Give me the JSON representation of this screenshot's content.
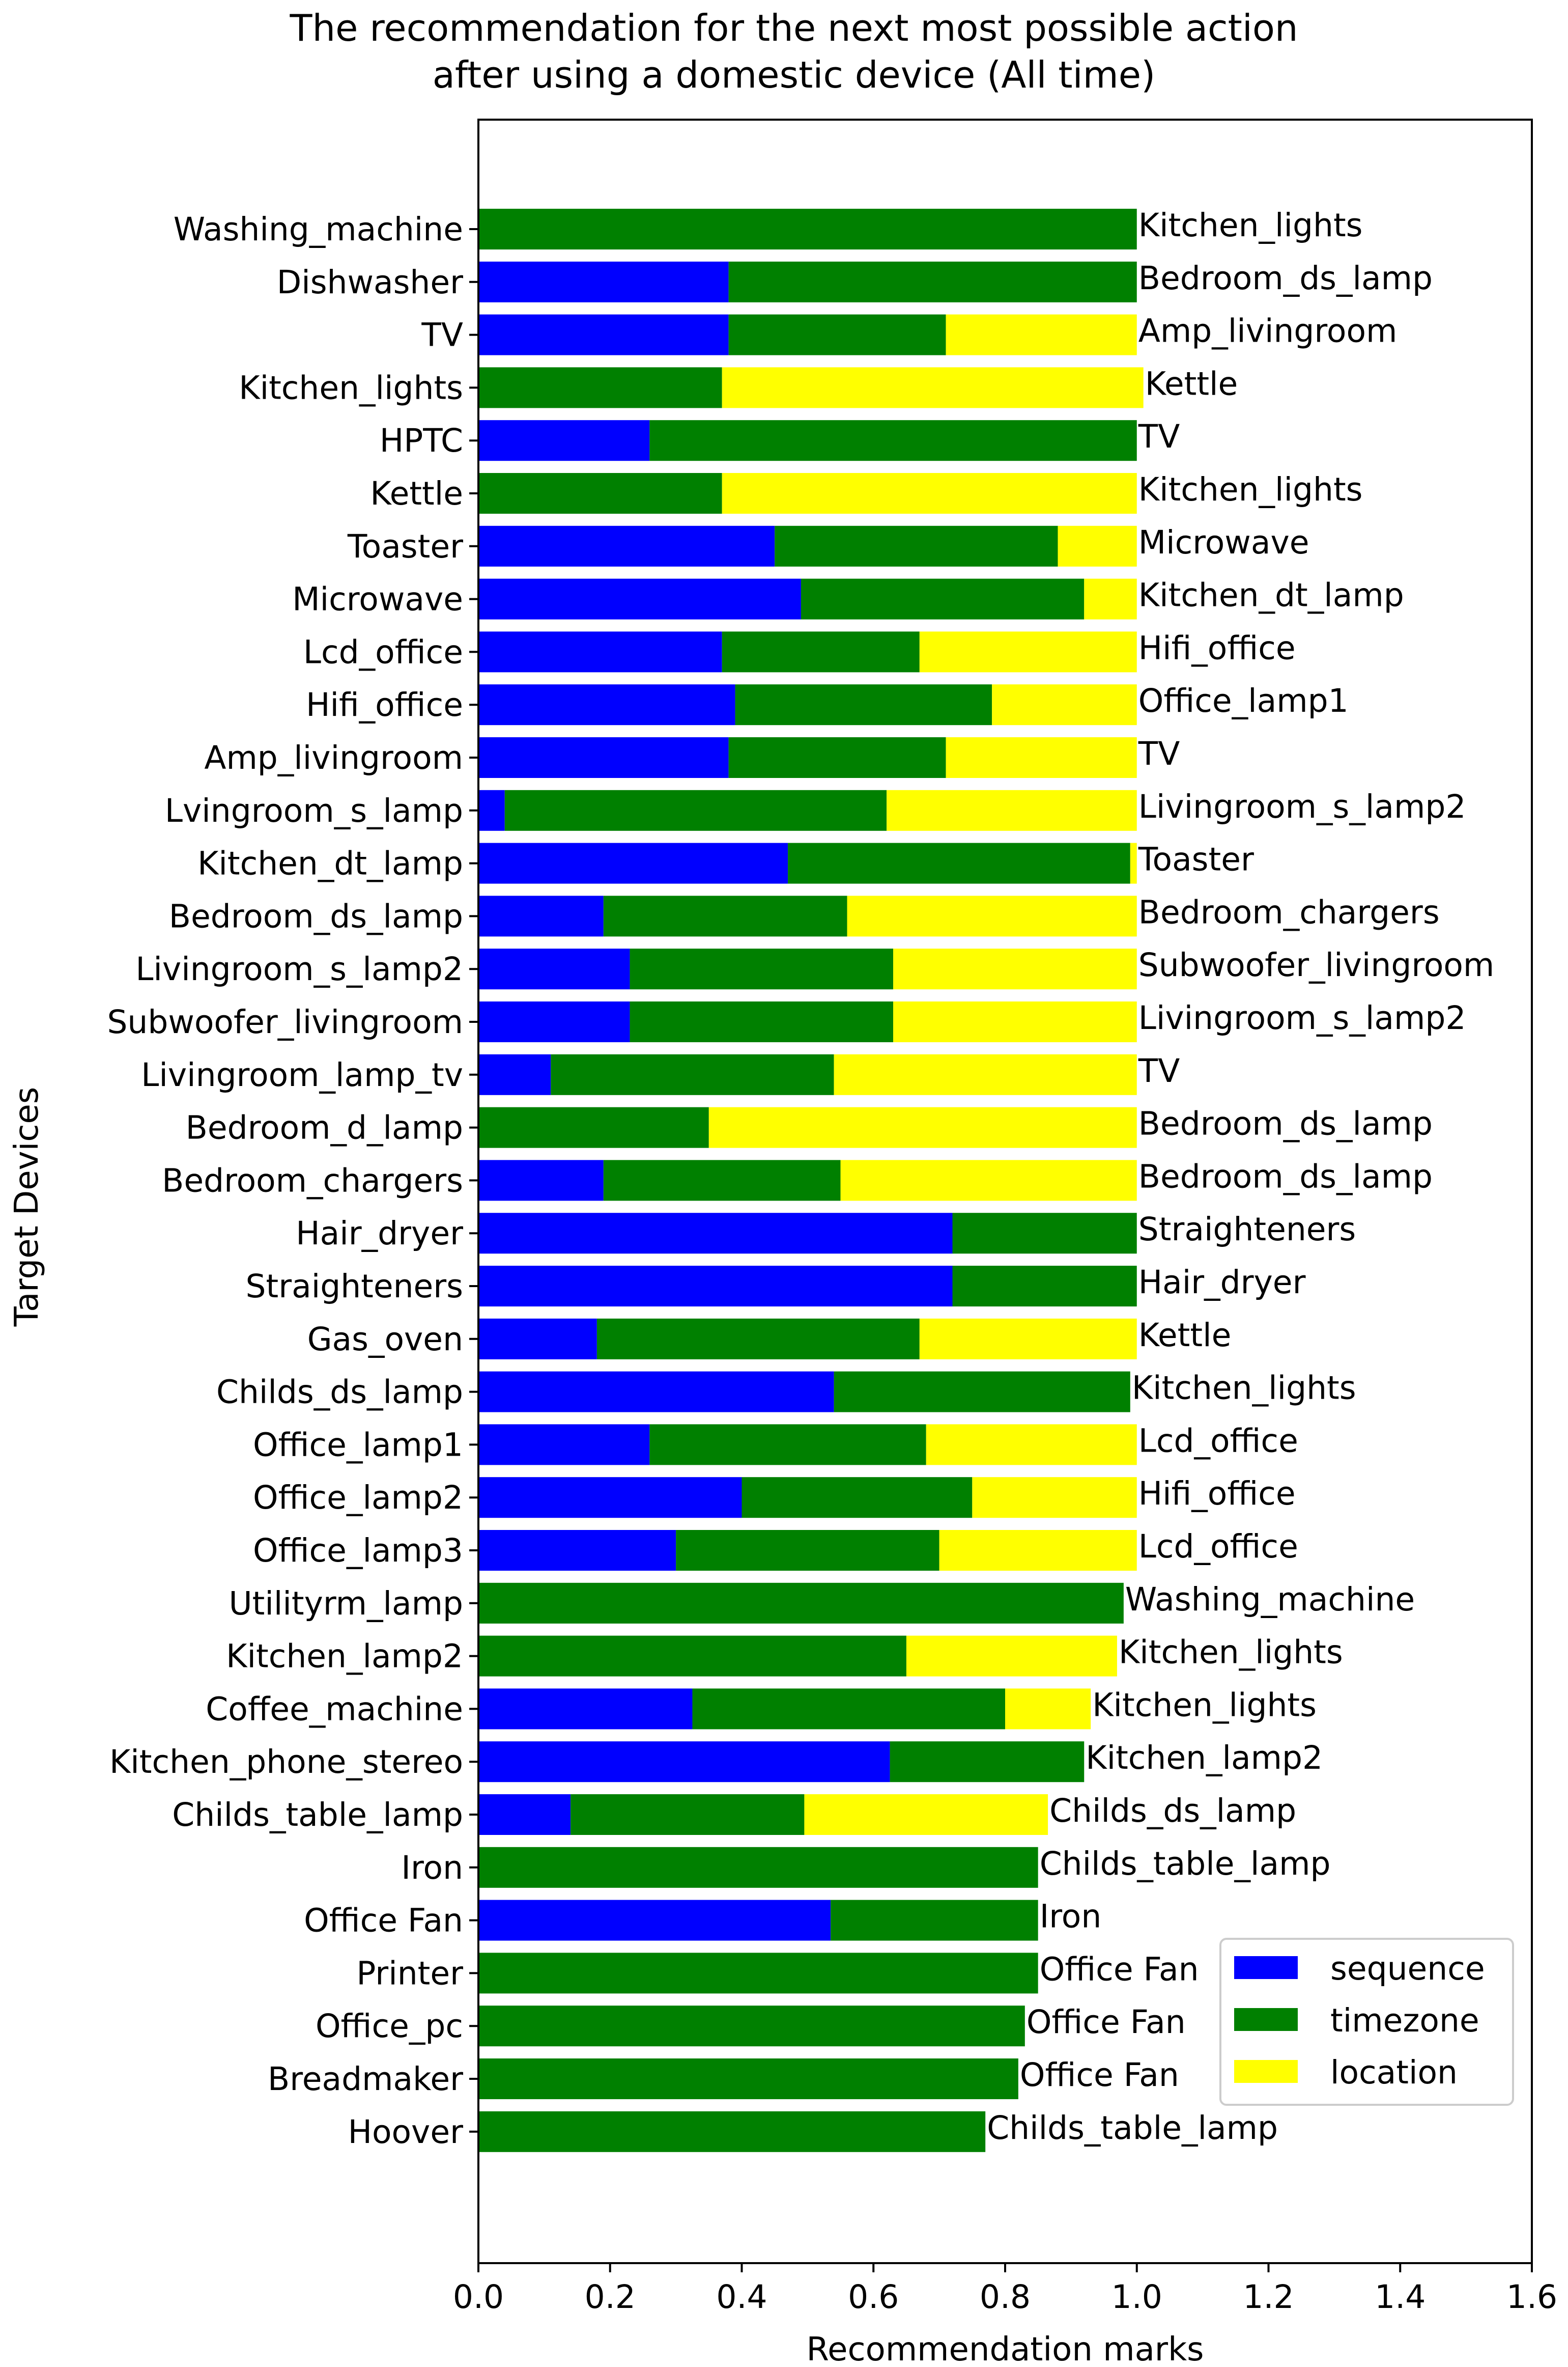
{
  "chart_data": {
    "type": "bar",
    "orientation": "horizontal",
    "stacked": true,
    "title_lines": [
      "The recommendation for the next most possible action",
      "after using a domestic device (All time)"
    ],
    "xlabel": "Recommendation marks",
    "ylabel": "Target Devices",
    "xlim": [
      0.0,
      1.6
    ],
    "xticks": [
      "0.0",
      "0.2",
      "0.4",
      "0.6",
      "0.8",
      "1.0",
      "1.2",
      "1.4",
      "1.6"
    ],
    "xtick_values": [
      0.0,
      0.2,
      0.4,
      0.6,
      0.8,
      1.0,
      1.2,
      1.4,
      1.6
    ],
    "grid": false,
    "legend_position": "bottom-right",
    "categories": [
      "Washing_machine",
      "Dishwasher",
      "TV",
      "Kitchen_lights",
      "HPTC",
      "Kettle",
      "Toaster",
      "Microwave",
      "Lcd_office",
      "Hifi_office",
      "Amp_livingroom",
      "Lvingroom_s_lamp",
      "Kitchen_dt_lamp",
      "Bedroom_ds_lamp",
      "Livingroom_s_lamp2",
      "Subwoofer_livingroom",
      "Livingroom_lamp_tv",
      "Bedroom_d_lamp",
      "Bedroom_chargers",
      "Hair_dryer",
      "Straighteners",
      "Gas_oven",
      "Childs_ds_lamp",
      "Office_lamp1",
      "Office_lamp2",
      "Office_lamp3",
      "Utilityrm_lamp",
      "Kitchen_lamp2",
      "Coffee_machine",
      "Kitchen_phone_stereo",
      "Childs_table_lamp",
      "Iron",
      "Office Fan",
      "Printer",
      "Office_pc",
      "Breadmaker",
      "Hoover"
    ],
    "series": [
      {
        "name": "sequence",
        "color": "#0000ff",
        "values": [
          0.0,
          0.38,
          0.38,
          0.0,
          0.26,
          0.0,
          0.45,
          0.49,
          0.37,
          0.39,
          0.38,
          0.04,
          0.47,
          0.19,
          0.23,
          0.23,
          0.11,
          0.0,
          0.19,
          0.72,
          0.72,
          0.18,
          0.54,
          0.26,
          0.4,
          0.3,
          0.0,
          0.0,
          0.325,
          0.625,
          0.14,
          0.0,
          0.535,
          0.0,
          0.0,
          0.0,
          0.0
        ]
      },
      {
        "name": "timezone",
        "color": "#008000",
        "values": [
          1.0,
          0.62,
          0.33,
          0.37,
          0.74,
          0.37,
          0.43,
          0.43,
          0.3,
          0.39,
          0.33,
          0.58,
          0.52,
          0.37,
          0.4,
          0.4,
          0.43,
          0.35,
          0.36,
          0.28,
          0.28,
          0.49,
          0.45,
          0.42,
          0.35,
          0.4,
          0.98,
          0.65,
          0.475,
          0.295,
          0.355,
          0.85,
          0.315,
          0.85,
          0.83,
          0.82,
          0.77
        ]
      },
      {
        "name": "location",
        "color": "#ffff00",
        "values": [
          0.0,
          0.0,
          0.29,
          0.64,
          0.0,
          0.63,
          0.12,
          0.08,
          0.33,
          0.22,
          0.29,
          0.38,
          0.01,
          0.44,
          0.37,
          0.37,
          0.46,
          0.65,
          0.45,
          0.0,
          0.0,
          0.33,
          0.0,
          0.32,
          0.25,
          0.3,
          0.0,
          0.32,
          0.13,
          0.0,
          0.37,
          0.0,
          0.0,
          0.0,
          0.0,
          0.0,
          0.0
        ]
      }
    ],
    "next_action_labels": [
      "Kitchen_lights",
      "Bedroom_ds_lamp",
      "Amp_livingroom",
      "Kettle",
      "TV",
      "Kitchen_lights",
      "Microwave",
      "Kitchen_dt_lamp",
      "Hifi_office",
      "Office_lamp1",
      "TV",
      "Livingroom_s_lamp2",
      "Toaster",
      "Bedroom_chargers",
      "Subwoofer_livingroom",
      "Livingroom_s_lamp2",
      "TV",
      "Bedroom_ds_lamp",
      "Bedroom_ds_lamp",
      "Straighteners",
      "Hair_dryer",
      "Kettle",
      "Kitchen_lights",
      "Lcd_office",
      "Hifi_office",
      "Lcd_office",
      "Washing_machine",
      "Kitchen_lights",
      "Kitchen_lights",
      "Kitchen_lamp2",
      "Childs_ds_lamp",
      "Childs_table_lamp",
      "Iron",
      "Office Fan",
      "Office Fan",
      "Office Fan",
      "Childs_table_lamp"
    ]
  }
}
